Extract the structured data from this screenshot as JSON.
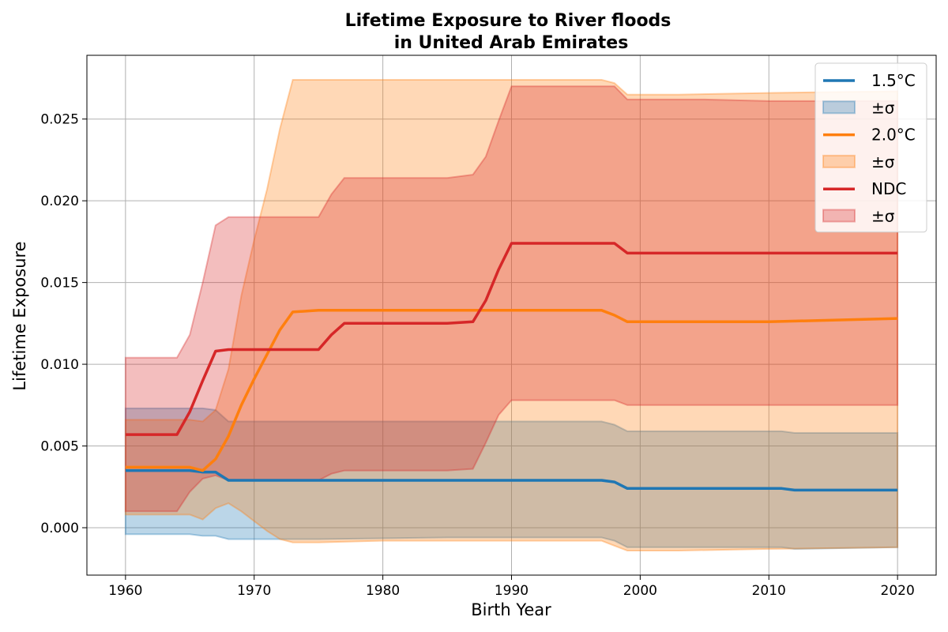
{
  "chart_data": {
    "type": "area",
    "title_line1": "Lifetime Exposure to River floods",
    "title_line2": "in United Arab Emirates",
    "xlabel": "Birth Year",
    "ylabel": "Lifetime Exposure",
    "xlim": [
      1957,
      2023
    ],
    "ylim": [
      -0.0029,
      0.0289
    ],
    "xticks": [
      1960,
      1970,
      1980,
      1990,
      2000,
      2010,
      2020
    ],
    "xtick_labels": [
      "1960",
      "1970",
      "1980",
      "1990",
      "2000",
      "2010",
      "2020"
    ],
    "yticks": [
      0.0,
      0.005,
      0.01,
      0.015,
      0.02,
      0.025
    ],
    "ytick_labels": [
      "0.000",
      "0.005",
      "0.010",
      "0.015",
      "0.020",
      "0.025"
    ],
    "grid": true,
    "legend_position": "top-right",
    "legend": [
      {
        "label": "1.5°C",
        "kind": "line",
        "series": "s15"
      },
      {
        "label": "±σ",
        "kind": "band",
        "series": "s15"
      },
      {
        "label": "2.0°C",
        "kind": "line",
        "series": "s20"
      },
      {
        "label": "±σ",
        "kind": "band",
        "series": "s20"
      },
      {
        "label": "NDC",
        "kind": "line",
        "series": "ndc"
      },
      {
        "label": "±σ",
        "kind": "band",
        "series": "ndc"
      }
    ],
    "series": [
      {
        "id": "s15",
        "name": "1.5°C",
        "color": "#1f77b4",
        "band_color": "#1f77b4",
        "x": [
          1960,
          1964,
          1965,
          1966,
          1967,
          1968,
          1970,
          1975,
          1985,
          1990,
          1997,
          1998,
          1999,
          2005,
          2011,
          2012,
          2020
        ],
        "values": [
          0.0035,
          0.0035,
          0.0035,
          0.0034,
          0.0034,
          0.0029,
          0.0029,
          0.0029,
          0.0029,
          0.0029,
          0.0029,
          0.0028,
          0.0024,
          0.0024,
          0.0024,
          0.0023,
          0.0023
        ],
        "lower": [
          -0.0004,
          -0.0004,
          -0.0004,
          -0.0005,
          -0.0005,
          -0.0007,
          -0.0007,
          -0.0007,
          -0.0006,
          -0.0006,
          -0.0006,
          -0.0008,
          -0.0012,
          -0.0012,
          -0.0012,
          -0.0013,
          -0.0012
        ],
        "upper": [
          0.0073,
          0.0073,
          0.0073,
          0.0073,
          0.0072,
          0.0065,
          0.0065,
          0.0065,
          0.0065,
          0.0065,
          0.0065,
          0.0063,
          0.0059,
          0.0059,
          0.0059,
          0.0058,
          0.0058
        ]
      },
      {
        "id": "s20",
        "name": "2.0°C",
        "color": "#ff7f0e",
        "band_color": "#ff7f0e",
        "x": [
          1960,
          1965,
          1966,
          1967,
          1968,
          1969,
          1970,
          1971,
          1972,
          1973,
          1975,
          1980,
          1985,
          1990,
          1997,
          1998,
          1999,
          2003,
          2010,
          2020
        ],
        "values": [
          0.0037,
          0.0037,
          0.0035,
          0.0042,
          0.0056,
          0.0075,
          0.0091,
          0.0106,
          0.0121,
          0.0132,
          0.0133,
          0.0133,
          0.0133,
          0.0133,
          0.0133,
          0.013,
          0.0126,
          0.0126,
          0.0126,
          0.0128
        ],
        "lower": [
          0.0008,
          0.0008,
          0.0005,
          0.0012,
          0.0015,
          0.001,
          0.0004,
          -0.0002,
          -0.0007,
          -0.0009,
          -0.0009,
          -0.0008,
          -0.0008,
          -0.0008,
          -0.0008,
          -0.0011,
          -0.0014,
          -0.0014,
          -0.0013,
          -0.0012
        ],
        "upper": [
          0.0066,
          0.0066,
          0.0065,
          0.0072,
          0.0097,
          0.0142,
          0.0176,
          0.0207,
          0.0244,
          0.0274,
          0.0274,
          0.0274,
          0.0274,
          0.0274,
          0.0274,
          0.0272,
          0.0265,
          0.0265,
          0.0266,
          0.0267
        ]
      },
      {
        "id": "ndc",
        "name": "NDC",
        "color": "#d62728",
        "band_color": "#d62728",
        "x": [
          1960,
          1964,
          1965,
          1966,
          1967,
          1968,
          1970,
          1975,
          1976,
          1977,
          1980,
          1985,
          1987,
          1988,
          1989,
          1990,
          1997,
          1998,
          1999,
          2005,
          2010,
          2020
        ],
        "values": [
          0.0057,
          0.0057,
          0.0071,
          0.009,
          0.0108,
          0.0109,
          0.0109,
          0.0109,
          0.0118,
          0.0125,
          0.0125,
          0.0125,
          0.0126,
          0.0139,
          0.0158,
          0.0174,
          0.0174,
          0.0174,
          0.0168,
          0.0168,
          0.0168,
          0.0168
        ],
        "lower": [
          0.001,
          0.001,
          0.0022,
          0.003,
          0.0032,
          0.0029,
          0.0029,
          0.0029,
          0.0033,
          0.0035,
          0.0035,
          0.0035,
          0.0036,
          0.0052,
          0.0069,
          0.0078,
          0.0078,
          0.0078,
          0.0075,
          0.0075,
          0.0075,
          0.0075
        ],
        "upper": [
          0.0104,
          0.0104,
          0.0118,
          0.015,
          0.0185,
          0.019,
          0.019,
          0.019,
          0.0204,
          0.0214,
          0.0214,
          0.0214,
          0.0216,
          0.0227,
          0.0249,
          0.027,
          0.027,
          0.027,
          0.0262,
          0.0262,
          0.0261,
          0.0261
        ]
      }
    ]
  }
}
